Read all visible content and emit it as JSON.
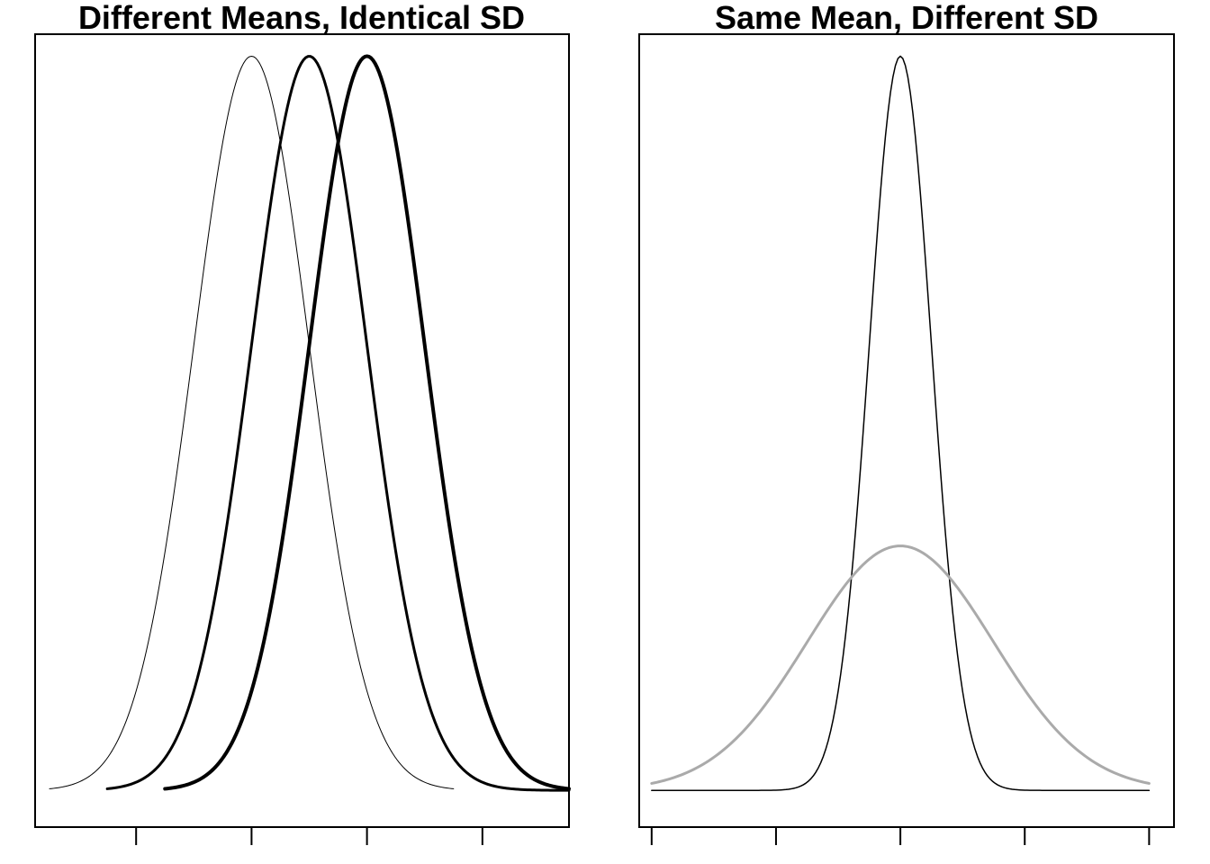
{
  "chart_data": [
    {
      "type": "line",
      "title": "Different Means, Identical SD",
      "xlabel": "",
      "ylabel": "",
      "xlim": [
        -3.75,
        5.5
      ],
      "ylim": [
        -0.05,
        1.03
      ],
      "x_ticks": [
        -2,
        0,
        2,
        4
      ],
      "y_ticks": [],
      "grid": false,
      "legend": "none",
      "series": [
        {
          "mean": 0,
          "sd": 1,
          "x_range": [
            -3.5,
            3.5
          ],
          "color": "#000000",
          "line_width": 1
        },
        {
          "mean": 1,
          "sd": 1,
          "x_range": [
            -2.5,
            5.5
          ],
          "color": "#000000",
          "line_width": 3
        },
        {
          "mean": 2,
          "sd": 1,
          "x_range": [
            -1.5,
            5.5
          ],
          "color": "#000000",
          "line_width": 4
        }
      ]
    },
    {
      "type": "line",
      "title": "Same Mean, Different SD",
      "xlabel": "",
      "ylabel": "",
      "xlim": [
        -4.2,
        4.4
      ],
      "ylim": [
        -0.05,
        1.03
      ],
      "x_ticks": [
        -4,
        -2,
        0,
        2,
        4
      ],
      "y_ticks": [],
      "grid": false,
      "legend": "none",
      "series": [
        {
          "mean": 0,
          "sd": 0.5,
          "x_range": [
            -4,
            4
          ],
          "peak": 1.0,
          "color": "#000000",
          "line_width": 1.5
        },
        {
          "mean": 0,
          "sd": 1.5,
          "x_range": [
            -4,
            4
          ],
          "peak": 0.333,
          "color": "#aaaaaa",
          "line_width": 3
        }
      ]
    }
  ]
}
